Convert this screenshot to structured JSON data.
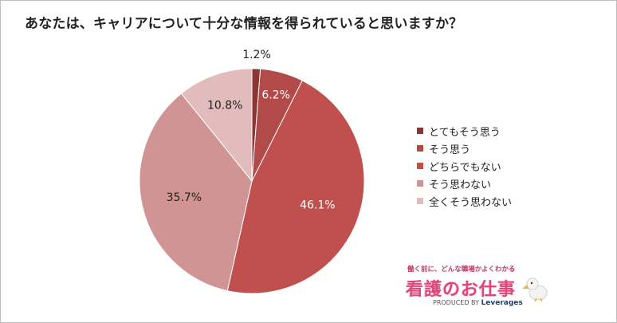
{
  "title": "あなたは、キャリアについて十分な情報を得られていると思いますか？",
  "chart_data": {
    "type": "pie",
    "title": "あなたは、キャリアについて十分な情報を得られていると思いますか？",
    "categories": [
      "とてもそう思う",
      "そう思う",
      "どちらでもない",
      "そう思わない",
      "全くそう思わない"
    ],
    "values": [
      1.2,
      6.2,
      46.1,
      35.7,
      10.8
    ],
    "value_labels": [
      "1.2%",
      "6.2%",
      "46.1%",
      "35.7%",
      "10.8%"
    ],
    "colors": [
      "#8b3535",
      "#b34a4a",
      "#c0504d",
      "#d09494",
      "#e2bcbc"
    ],
    "start_angle": "12 o'clock",
    "direction": "clockwise",
    "legend_position": "right"
  },
  "brand": {
    "tagline": "働く前に、どんな職場かよくわかる",
    "name": "看護のお仕事",
    "produced_by": "PRODUCED BY",
    "company": "Leverages",
    "icon": "pelican-icon"
  }
}
